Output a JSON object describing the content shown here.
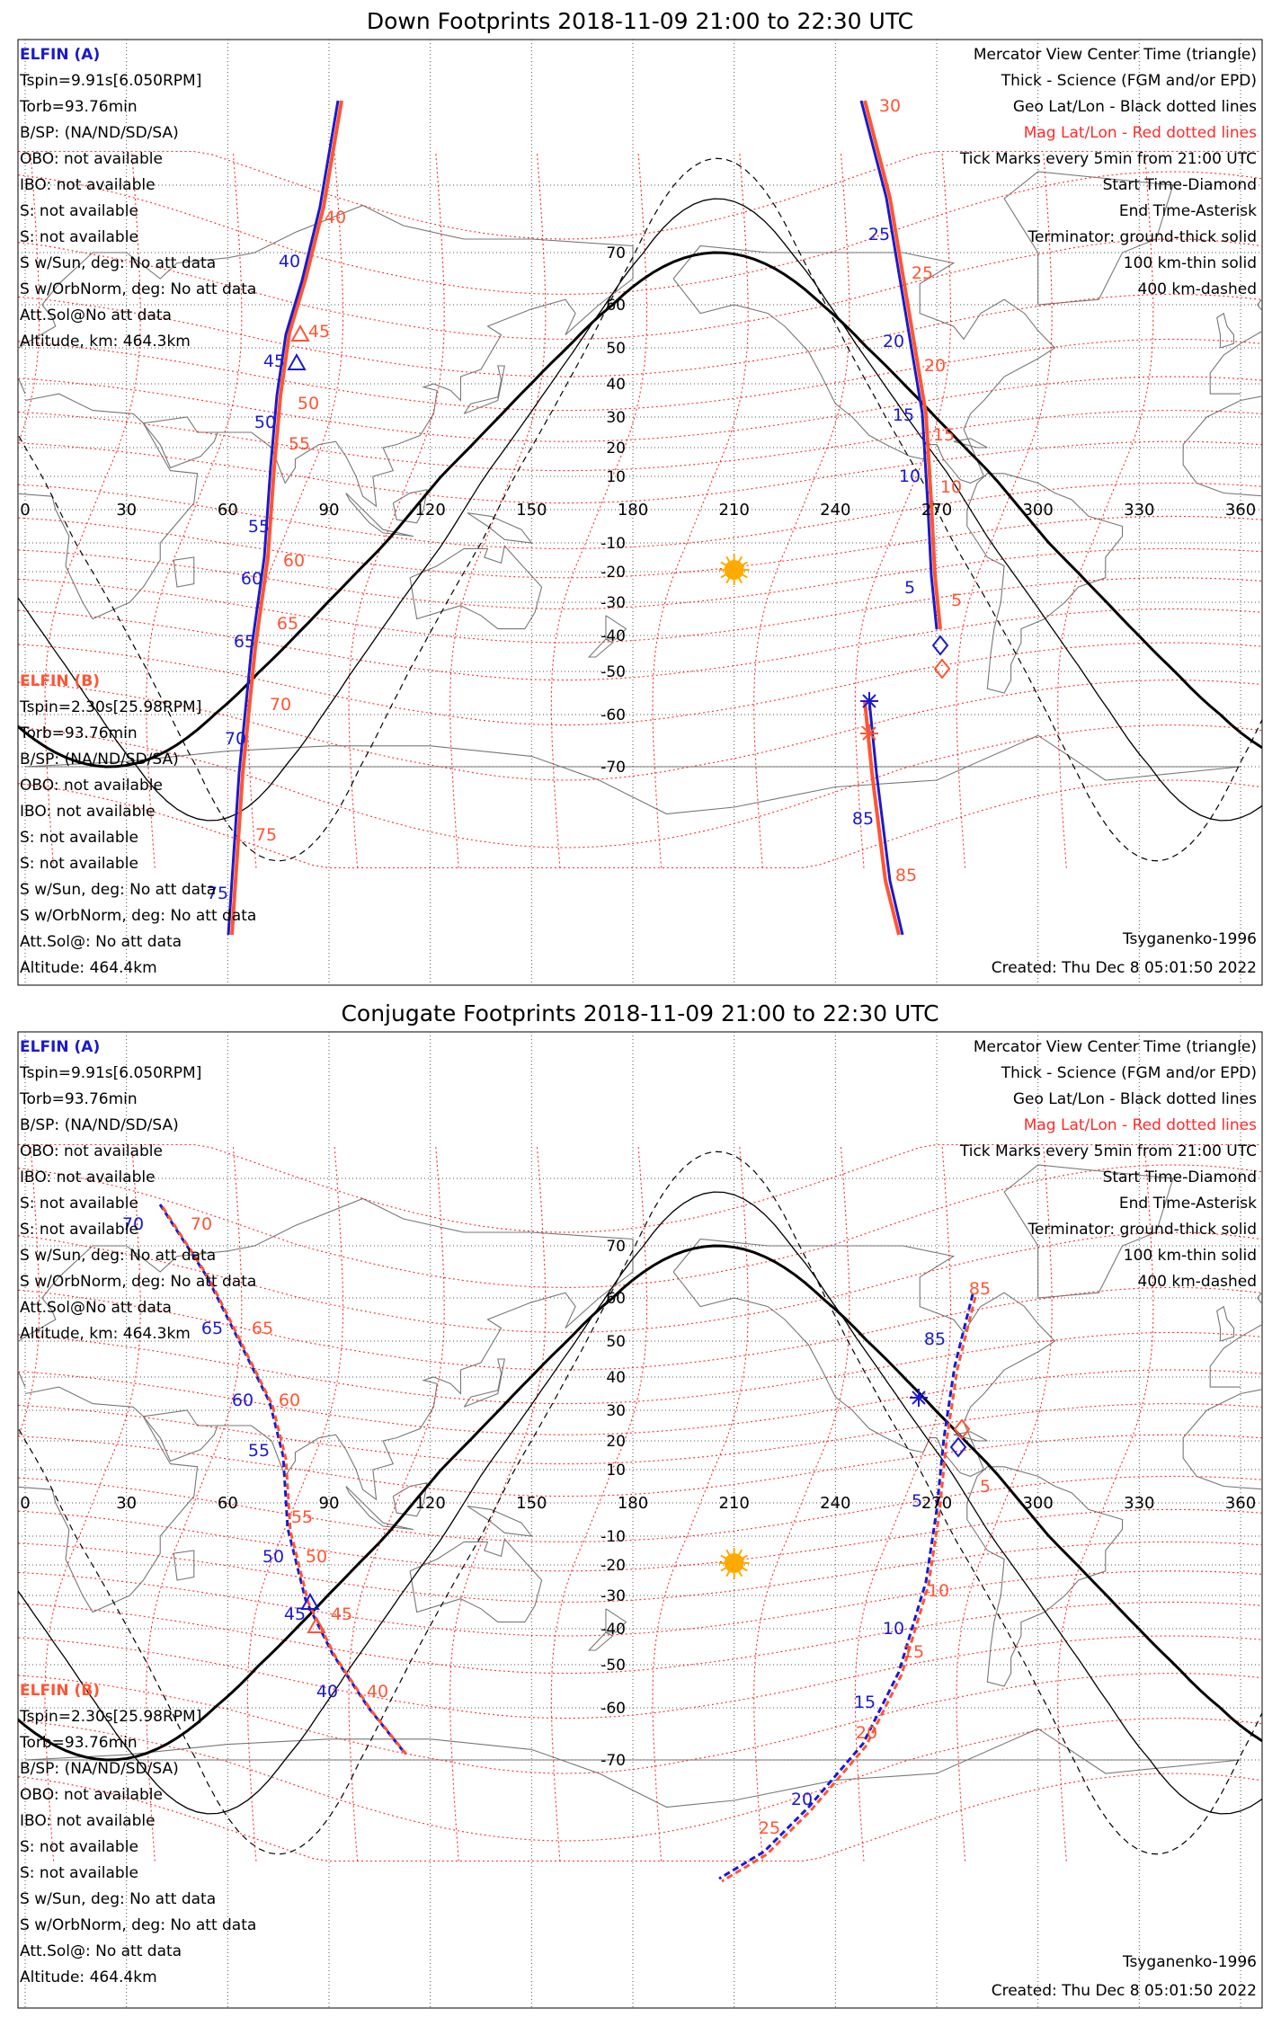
{
  "colors": {
    "elfin_a": "#1a1acc",
    "elfin_b": "#ff5533",
    "mag_grid": "#ff2a2a",
    "geo_grid": "#555555",
    "terminator": "#000000",
    "sun": "#ffaa00"
  },
  "lon_ticks": [
    "0",
    "30",
    "60",
    "90",
    "120",
    "150",
    "180",
    "210",
    "240",
    "270",
    "300",
    "330",
    "360"
  ],
  "lat_ticks": [
    "70",
    "60",
    "50",
    "40",
    "30",
    "20",
    "10",
    "-10",
    "-20",
    "-30",
    "-40",
    "-50",
    "-60",
    "-70"
  ],
  "panels": [
    {
      "title": "Down Footprints 2018-11-09 21:00 to 22:30 UTC",
      "elfin_a": {
        "name": "ELFIN (A)",
        "lines": [
          "Tspin=9.91s[6.050RPM]",
          "Torb=93.76min",
          "B/SP: (NA/ND/SD/SA)",
          "OBO: not available",
          "IBO: not available",
          "S: not available",
          "S: not available",
          "S w/Sun, deg: No att data",
          "S w/OrbNorm, deg: No att data",
          "Att.Sol@No att data",
          "Altitude, km: 464.3km"
        ]
      },
      "elfin_b": {
        "name": "ELFIN (B)",
        "lines": [
          "Tspin=2.30s[25.98RPM]",
          "Torb=93.76min",
          "B/SP: (NA/ND/SD/SA)",
          "OBO: not available",
          "IBO: not available",
          "S: not available",
          "S: not available",
          "S w/Sun, deg: No att data",
          "S w/OrbNorm, deg: No att data",
          "Att.Sol@: No att data",
          "Altitude: 464.4km"
        ]
      },
      "legend": [
        "Mercator View Center Time (triangle)",
        "Thick - Science (FGM and/or EPD)",
        "Geo Lat/Lon - Black dotted lines",
        "Mag Lat/Lon - Red dotted lines",
        "Tick Marks every 5min from 21:00 UTC",
        "Start Time-Diamond",
        "End Time-Asterisk",
        "Terminator: ground-thick solid",
        "100 km-thin solid",
        "400 km-dashed"
      ],
      "model": "Tsyganenko-1996",
      "created": "Created: Thu Dec  8 05:01:50 2022",
      "track_labels_a": [
        "40",
        "45",
        "50",
        "55",
        "60",
        "65",
        "70",
        "75",
        "25",
        "20",
        "15",
        "10",
        "5",
        "85"
      ],
      "track_labels_b": [
        "40",
        "45",
        "50",
        "55",
        "60",
        "65",
        "70",
        "75",
        "30",
        "25",
        "20",
        "15",
        "10",
        "5",
        "85"
      ]
    },
    {
      "title": "Conjugate Footprints 2018-11-09 21:00 to 22:30 UTC",
      "elfin_a": {
        "name": "ELFIN (A)",
        "lines": [
          "Tspin=9.91s[6.050RPM]",
          "Torb=93.76min",
          "B/SP: (NA/ND/SD/SA)",
          "OBO: not available",
          "IBO: not available",
          "S: not available",
          "S: not available",
          "S w/Sun, deg: No att data",
          "S w/OrbNorm, deg: No att data",
          "Att.Sol@No att data",
          "Altitude, km: 464.3km"
        ]
      },
      "elfin_b": {
        "name": "ELFIN (B)",
        "lines": [
          "Tspin=2.30s[25.98RPM]",
          "Torb=93.76min",
          "B/SP: (NA/ND/SD/SA)",
          "OBO: not available",
          "IBO: not available",
          "S: not available",
          "S: not available",
          "S w/Sun, deg: No att data",
          "S w/OrbNorm, deg: No att data",
          "Att.Sol@: No att data",
          "Altitude: 464.4km"
        ]
      },
      "legend": [
        "Mercator View Center Time (triangle)",
        "Thick - Science (FGM and/or EPD)",
        "Geo Lat/Lon - Black dotted lines",
        "Mag Lat/Lon - Red dotted lines",
        "Tick Marks every 5min from 21:00 UTC",
        "Start Time-Diamond",
        "End Time-Asterisk",
        "Terminator: ground-thick solid",
        "100 km-thin solid",
        "400 km-dashed"
      ],
      "model": "Tsyganenko-1996",
      "created": "Created: Thu Dec  8 05:01:50 2022",
      "track_labels_a": [
        "70",
        "65",
        "60",
        "55",
        "50",
        "45",
        "40",
        "85",
        "5",
        "10",
        "15",
        "20"
      ],
      "track_labels_b": [
        "70",
        "65",
        "60",
        "55",
        "50",
        "45",
        "40",
        "85",
        "5",
        "10",
        "15",
        "20",
        "25"
      ]
    }
  ]
}
